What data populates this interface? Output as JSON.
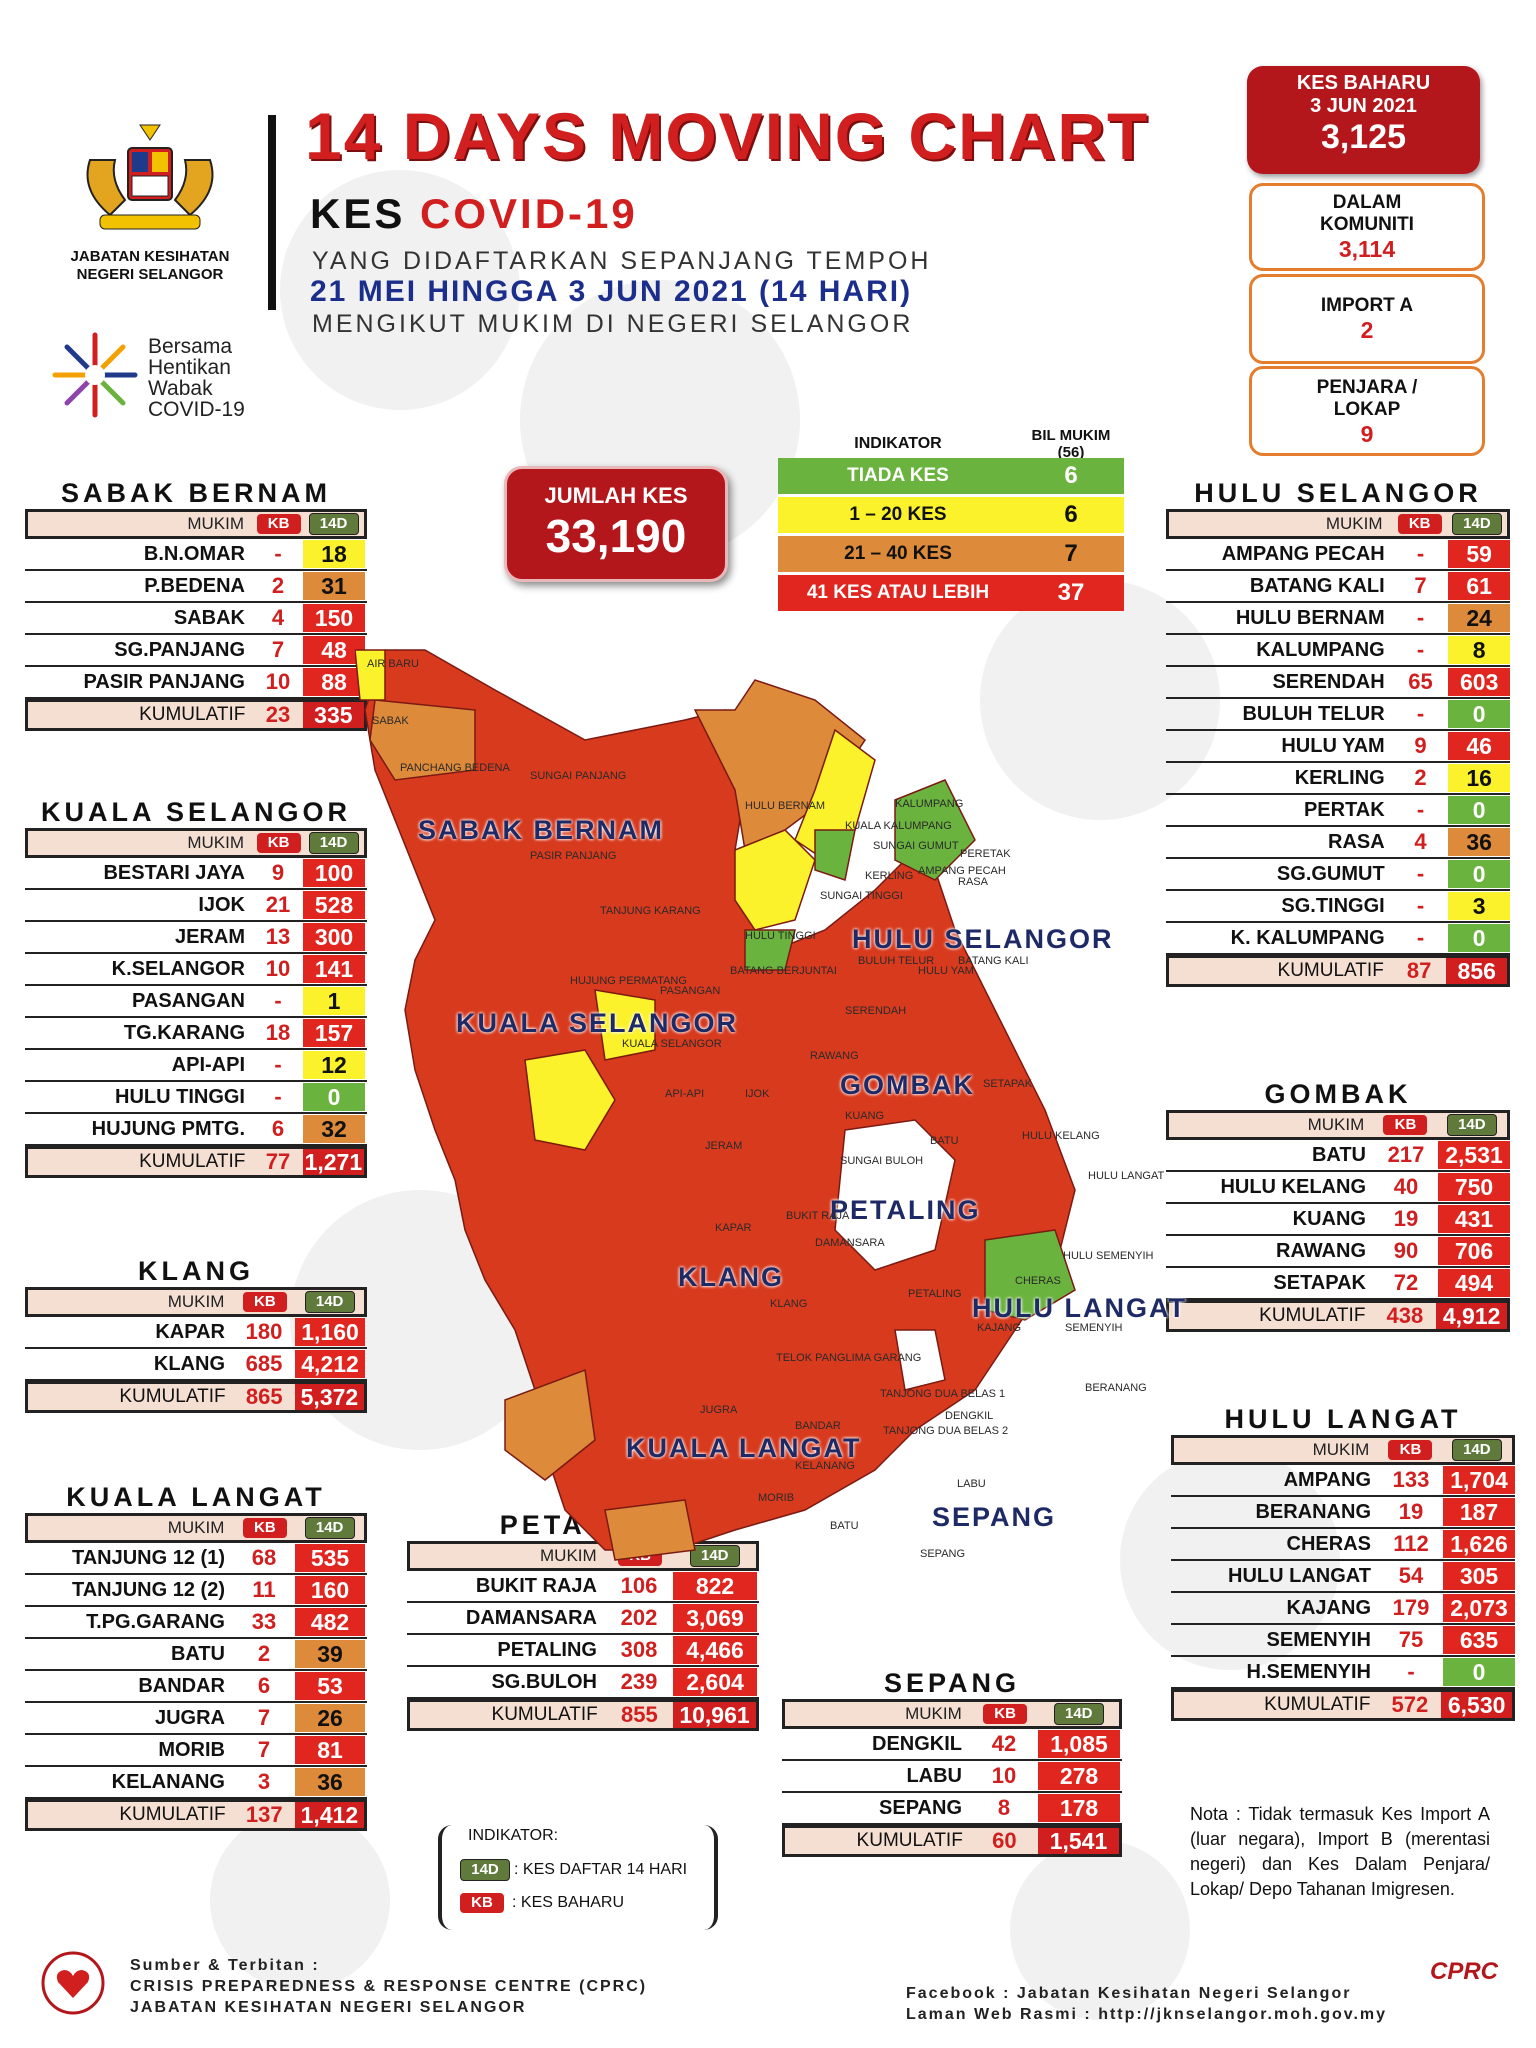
{
  "header": {
    "title": "14 DAYS MOVING CHART",
    "kes_prefix": "KES",
    "kes_covid": "COVID-19",
    "line1": "YANG DIDAFTARKAN SEPANJANG TEMPOH",
    "line2": "21 MEI HINGGA 3 JUN 2021 (14 HARI)",
    "line3": "MENGIKUT MUKIM DI NEGERI SELANGOR",
    "dept": "JABATAN KESIHATAN NEGERI SELANGOR",
    "campaign": [
      "Bersama",
      "Hentikan",
      "Wabak",
      "COVID-19"
    ]
  },
  "summary": {
    "kes_baharu_label": "KES BAHARU",
    "kes_baharu_date": "3 JUN 2021",
    "kes_baharu_value": "3,125",
    "komuniti_label": "DALAM KOMUNITI",
    "komuniti_value": "3,114",
    "import_label": "IMPORT A",
    "import_value": "2",
    "penjara_label": "PENJARA / LOKAP",
    "penjara_value": "9",
    "jumlah_label": "JUMLAH KES",
    "jumlah_value": "33,190"
  },
  "indicator": {
    "h1": "INDIKATOR",
    "h2": "BIL MUKIM (56)",
    "rows": [
      {
        "label": "TIADA KES",
        "value": "6",
        "color": "#6bb33f"
      },
      {
        "label": "1 – 20 KES",
        "value": "6",
        "color": "#fbf22b"
      },
      {
        "label": "21 – 40 KES",
        "value": "7",
        "color": "#dd8a3b"
      },
      {
        "label": "41 KES ATAU LEBIH",
        "value": "37",
        "color": "#e1251f"
      }
    ]
  },
  "table_headers": {
    "mukim": "MUKIM",
    "kb": "KB",
    "d14": "14D",
    "kumulatif": "KUMULATIF"
  },
  "districts": {
    "sabak_bernam": {
      "title": "SABAK BERNAM",
      "rows": [
        {
          "name": "B.N.OMAR",
          "kb": "-",
          "d14": "18",
          "c": "cy"
        },
        {
          "name": "P.BEDENA",
          "kb": "2",
          "d14": "31",
          "c": "co"
        },
        {
          "name": "SABAK",
          "kb": "4",
          "d14": "150",
          "c": "cr"
        },
        {
          "name": "SG.PANJANG",
          "kb": "7",
          "d14": "48",
          "c": "cr"
        },
        {
          "name": "PASIR PANJANG",
          "kb": "10",
          "d14": "88",
          "c": "cr"
        }
      ],
      "kum_kb": "23",
      "kum_d14": "335"
    },
    "kuala_selangor": {
      "title": "KUALA SELANGOR",
      "rows": [
        {
          "name": "BESTARI JAYA",
          "kb": "9",
          "d14": "100",
          "c": "cr"
        },
        {
          "name": "IJOK",
          "kb": "21",
          "d14": "528",
          "c": "cr"
        },
        {
          "name": "JERAM",
          "kb": "13",
          "d14": "300",
          "c": "cr"
        },
        {
          "name": "K.SELANGOR",
          "kb": "10",
          "d14": "141",
          "c": "cr"
        },
        {
          "name": "PASANGAN",
          "kb": "-",
          "d14": "1",
          "c": "cy"
        },
        {
          "name": "TG.KARANG",
          "kb": "18",
          "d14": "157",
          "c": "cr"
        },
        {
          "name": "API-API",
          "kb": "-",
          "d14": "12",
          "c": "cy"
        },
        {
          "name": "HULU TINGGI",
          "kb": "-",
          "d14": "0",
          "c": "cg"
        },
        {
          "name": "HUJUNG PMTG.",
          "kb": "6",
          "d14": "32",
          "c": "co"
        }
      ],
      "kum_kb": "77",
      "kum_d14": "1,271"
    },
    "klang": {
      "title": "KLANG",
      "rows": [
        {
          "name": "KAPAR",
          "kb": "180",
          "d14": "1,160",
          "c": "cr"
        },
        {
          "name": "KLANG",
          "kb": "685",
          "d14": "4,212",
          "c": "cr"
        }
      ],
      "kum_kb": "865",
      "kum_d14": "5,372"
    },
    "kuala_langat": {
      "title": "KUALA LANGAT",
      "rows": [
        {
          "name": "TANJUNG 12 (1)",
          "kb": "68",
          "d14": "535",
          "c": "cr"
        },
        {
          "name": "TANJUNG 12 (2)",
          "kb": "11",
          "d14": "160",
          "c": "cr"
        },
        {
          "name": "T.PG.GARANG",
          "kb": "33",
          "d14": "482",
          "c": "cr"
        },
        {
          "name": "BATU",
          "kb": "2",
          "d14": "39",
          "c": "co"
        },
        {
          "name": "BANDAR",
          "kb": "6",
          "d14": "53",
          "c": "cr"
        },
        {
          "name": "JUGRA",
          "kb": "7",
          "d14": "26",
          "c": "co"
        },
        {
          "name": "MORIB",
          "kb": "7",
          "d14": "81",
          "c": "cr"
        },
        {
          "name": "KELANANG",
          "kb": "3",
          "d14": "36",
          "c": "co"
        }
      ],
      "kum_kb": "137",
      "kum_d14": "1,412"
    },
    "petaling": {
      "title": "PETALING",
      "rows": [
        {
          "name": "BUKIT RAJA",
          "kb": "106",
          "d14": "822",
          "c": "cr"
        },
        {
          "name": "DAMANSARA",
          "kb": "202",
          "d14": "3,069",
          "c": "cr"
        },
        {
          "name": "PETALING",
          "kb": "308",
          "d14": "4,466",
          "c": "cr"
        },
        {
          "name": "SG.BULOH",
          "kb": "239",
          "d14": "2,604",
          "c": "cr"
        }
      ],
      "kum_kb": "855",
      "kum_d14": "10,961"
    },
    "sepang": {
      "title": "SEPANG",
      "rows": [
        {
          "name": "DENGKIL",
          "kb": "42",
          "d14": "1,085",
          "c": "cr"
        },
        {
          "name": "LABU",
          "kb": "10",
          "d14": "278",
          "c": "cr"
        },
        {
          "name": "SEPANG",
          "kb": "8",
          "d14": "178",
          "c": "cr"
        }
      ],
      "kum_kb": "60",
      "kum_d14": "1,541"
    },
    "hulu_selangor": {
      "title": "HULU SELANGOR",
      "rows": [
        {
          "name": "AMPANG PECAH",
          "kb": "-",
          "d14": "59",
          "c": "cr"
        },
        {
          "name": "BATANG KALI",
          "kb": "7",
          "d14": "61",
          "c": "cr"
        },
        {
          "name": "HULU BERNAM",
          "kb": "-",
          "d14": "24",
          "c": "co"
        },
        {
          "name": "KALUMPANG",
          "kb": "-",
          "d14": "8",
          "c": "cy"
        },
        {
          "name": "SERENDAH",
          "kb": "65",
          "d14": "603",
          "c": "cr"
        },
        {
          "name": "BULUH TELUR",
          "kb": "-",
          "d14": "0",
          "c": "cg"
        },
        {
          "name": "HULU YAM",
          "kb": "9",
          "d14": "46",
          "c": "cr"
        },
        {
          "name": "KERLING",
          "kb": "2",
          "d14": "16",
          "c": "cy"
        },
        {
          "name": "PERTAK",
          "kb": "-",
          "d14": "0",
          "c": "cg"
        },
        {
          "name": "RASA",
          "kb": "4",
          "d14": "36",
          "c": "co"
        },
        {
          "name": "SG.GUMUT",
          "kb": "-",
          "d14": "0",
          "c": "cg"
        },
        {
          "name": "SG.TINGGI",
          "kb": "-",
          "d14": "3",
          "c": "cy"
        },
        {
          "name": "K. KALUMPANG",
          "kb": "-",
          "d14": "0",
          "c": "cg"
        }
      ],
      "kum_kb": "87",
      "kum_d14": "856"
    },
    "gombak": {
      "title": "GOMBAK",
      "rows": [
        {
          "name": "BATU",
          "kb": "217",
          "d14": "2,531",
          "c": "cr"
        },
        {
          "name": "HULU KELANG",
          "kb": "40",
          "d14": "750",
          "c": "cr"
        },
        {
          "name": "KUANG",
          "kb": "19",
          "d14": "431",
          "c": "cr"
        },
        {
          "name": "RAWANG",
          "kb": "90",
          "d14": "706",
          "c": "cr"
        },
        {
          "name": "SETAPAK",
          "kb": "72",
          "d14": "494",
          "c": "cr"
        }
      ],
      "kum_kb": "438",
      "kum_d14": "4,912"
    },
    "hulu_langat": {
      "title": "HULU LANGAT",
      "rows": [
        {
          "name": "AMPANG",
          "kb": "133",
          "d14": "1,704",
          "c": "cr"
        },
        {
          "name": "BERANANG",
          "kb": "19",
          "d14": "187",
          "c": "cr"
        },
        {
          "name": "CHERAS",
          "kb": "112",
          "d14": "1,626",
          "c": "cr"
        },
        {
          "name": "HULU LANGAT",
          "kb": "54",
          "d14": "305",
          "c": "cr"
        },
        {
          "name": "KAJANG",
          "kb": "179",
          "d14": "2,073",
          "c": "cr"
        },
        {
          "name": "SEMENYIH",
          "kb": "75",
          "d14": "635",
          "c": "cr"
        },
        {
          "name": "H.SEMENYIH",
          "kb": "-",
          "d14": "0",
          "c": "cg"
        }
      ],
      "kum_kb": "572",
      "kum_d14": "6,530"
    }
  },
  "map_labels": {
    "sabak_bernam": "SABAK BERNAM",
    "hulu_selangor": "HULU SELANGOR",
    "kuala_selangor": "KUALA SELANGOR",
    "gombak": "GOMBAK",
    "petaling": "PETALING",
    "klang": "KLANG",
    "hulu_langat": "HULU LANGAT",
    "kuala_langat": "KUALA LANGAT",
    "sepang": "SEPANG",
    "small": [
      "AIR BARU",
      "SABAK",
      "PANCHANG BEDENA",
      "SUNGAI PANJANG",
      "PASIR PANJANG",
      "HULU BERNAM",
      "KALUMPANG",
      "KUALA KALUMPANG",
      "SUNGAI GUMUT",
      "KERLING",
      "AMPANG PECAH",
      "PERETAK",
      "RASA",
      "SUNGAI TINGGI",
      "HULU TINGGI",
      "TANJUNG KARANG",
      "BATANG KALI",
      "HULU YAM",
      "BULUH TELUR",
      "HUJUNG PERMATANG",
      "PASANGAN",
      "BATANG BERJUNTAI",
      "SERENDAH",
      "KUALA SELANGOR",
      "RAWANG",
      "API-API",
      "IJOK",
      "SETAPAK",
      "KUANG",
      "BATU",
      "HULU KELANG",
      "JERAM",
      "SUNGAI BULOH",
      "HULU LANGAT",
      "KAPAR",
      "BUKIT RAJA",
      "DAMANSARA",
      "HULU SEMENYIH",
      "KLANG",
      "PETALING",
      "CHERAS",
      "KAJANG",
      "SEMENYIH",
      "TELOK PANGLIMA GARANG",
      "BERANANG",
      "TANJONG DUA BELAS 1",
      "JUGRA",
      "BANDAR",
      "TANJONG DUA BELAS 2",
      "DENGKIL",
      "KELANANG",
      "LABU",
      "MORIB",
      "BATU",
      "SEPANG"
    ]
  },
  "legend": {
    "title": "INDIKATOR:",
    "d14_text": ": KES DAFTAR 14 HARI",
    "kb_text": ": KES BAHARU"
  },
  "nota": "Nota : Tidak termasuk Kes Import A (luar negara), Import B (merentasi negeri) dan Kes Dalam Penjara/ Lokap/ Depo Tahanan Imigresen.",
  "footer": {
    "l1": "Sumber & Terbitan :",
    "l2": "CRISIS PREPAREDNESS & RESPONSE CENTRE (CPRC)",
    "l3": "JABATAN KESIHATAN NEGERI SELANGOR",
    "r1": "Facebook : Jabatan Kesihatan Negeri Selangor",
    "r2": "Laman Web Rasmi : http://jknselangor.moh.gov.my",
    "cprc": "CPRC"
  },
  "colors": {
    "red": "#e1251f",
    "yellow": "#fbf22b",
    "orange": "#dd8a3b",
    "green": "#6bb33f",
    "header_red": "#b3171b"
  }
}
